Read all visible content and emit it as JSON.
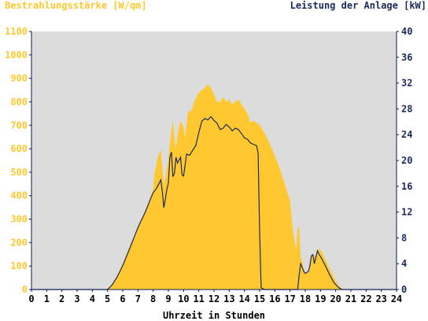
{
  "chart_data": {
    "type": "area",
    "left_axis_title": "Bestrahlungsstärke [W/qm]",
    "right_axis_title": "Leistung der Anlage [kW]",
    "xlabel": "Uhrzeit in Stunden",
    "xlim": [
      0,
      24
    ],
    "x_ticks": [
      "0",
      "1",
      "2",
      "3",
      "4",
      "5",
      "6",
      "7",
      "8",
      "9",
      "10",
      "11",
      "12",
      "13",
      "14",
      "15",
      "16",
      "17",
      "18",
      "19",
      "20",
      "21",
      "22",
      "23",
      "24"
    ],
    "ylim_left": [
      0,
      1100
    ],
    "y_ticks_left": [
      "0",
      "100",
      "200",
      "300",
      "400",
      "500",
      "600",
      "700",
      "800",
      "900",
      "1000",
      "1100"
    ],
    "ylim_right": [
      0,
      40
    ],
    "y_ticks_right": [
      "0",
      "4",
      "8",
      "12",
      "16",
      "20",
      "24",
      "28",
      "32",
      "36",
      "40"
    ],
    "grid": false,
    "colors": {
      "plot_background": "#dcdcdc",
      "irradiance_fill": "#ffc830",
      "power_line": "#1a2a5a",
      "left_axis_text": "#ffc830",
      "right_axis_text": "#1a2a5a",
      "axis_line": "#0a1a50"
    },
    "series": [
      {
        "axis": "left",
        "style": "area",
        "points": [
          [
            0,
            0
          ],
          [
            5.0,
            0
          ],
          [
            5.3,
            25
          ],
          [
            5.6,
            55
          ],
          [
            6.0,
            110
          ],
          [
            6.5,
            190
          ],
          [
            7.0,
            270
          ],
          [
            7.5,
            340
          ],
          [
            7.8,
            390
          ],
          [
            8.0,
            430
          ],
          [
            8.1,
            500
          ],
          [
            8.3,
            560
          ],
          [
            8.5,
            600
          ],
          [
            8.6,
            520
          ],
          [
            8.7,
            450
          ],
          [
            8.8,
            470
          ],
          [
            9.0,
            560
          ],
          [
            9.2,
            680
          ],
          [
            9.3,
            720
          ],
          [
            9.4,
            640
          ],
          [
            9.5,
            600
          ],
          [
            9.6,
            660
          ],
          [
            9.8,
            720
          ],
          [
            10.0,
            690
          ],
          [
            10.1,
            650
          ],
          [
            10.3,
            760
          ],
          [
            10.5,
            760
          ],
          [
            10.7,
            800
          ],
          [
            11.0,
            840
          ],
          [
            11.2,
            850
          ],
          [
            11.4,
            860
          ],
          [
            11.6,
            875
          ],
          [
            11.8,
            860
          ],
          [
            12.0,
            830
          ],
          [
            12.2,
            800
          ],
          [
            12.4,
            800
          ],
          [
            12.6,
            820
          ],
          [
            12.8,
            800
          ],
          [
            13.0,
            810
          ],
          [
            13.2,
            790
          ],
          [
            13.4,
            800
          ],
          [
            13.6,
            810
          ],
          [
            13.8,
            790
          ],
          [
            14.0,
            770
          ],
          [
            14.2,
            750
          ],
          [
            14.4,
            710
          ],
          [
            14.6,
            720
          ],
          [
            14.8,
            710
          ],
          [
            15.0,
            700
          ],
          [
            15.3,
            670
          ],
          [
            15.6,
            630
          ],
          [
            16.0,
            570
          ],
          [
            16.3,
            520
          ],
          [
            16.6,
            460
          ],
          [
            17.0,
            380
          ],
          [
            17.2,
            240
          ],
          [
            17.4,
            170
          ],
          [
            17.5,
            270
          ],
          [
            17.6,
            260
          ],
          [
            17.7,
            140
          ],
          [
            17.9,
            90
          ],
          [
            18.0,
            70
          ],
          [
            18.2,
            80
          ],
          [
            18.3,
            110
          ],
          [
            18.5,
            150
          ],
          [
            18.7,
            140
          ],
          [
            18.9,
            175
          ],
          [
            19.1,
            160
          ],
          [
            19.3,
            130
          ],
          [
            19.6,
            90
          ],
          [
            19.9,
            50
          ],
          [
            20.2,
            15
          ],
          [
            20.5,
            0
          ],
          [
            24,
            0
          ]
        ]
      },
      {
        "axis": "right",
        "style": "line",
        "points": [
          [
            0,
            0
          ],
          [
            5.0,
            0
          ],
          [
            5.3,
            0.7
          ],
          [
            5.6,
            1.8
          ],
          [
            6.0,
            3.7
          ],
          [
            6.5,
            6.6
          ],
          [
            7.0,
            9.6
          ],
          [
            7.5,
            12.1
          ],
          [
            7.8,
            13.9
          ],
          [
            8.0,
            15.0
          ],
          [
            8.2,
            15.6
          ],
          [
            8.4,
            16.5
          ],
          [
            8.5,
            17.0
          ],
          [
            8.6,
            15.2
          ],
          [
            8.7,
            12.7
          ],
          [
            8.8,
            14.0
          ],
          [
            8.9,
            15.5
          ],
          [
            9.0,
            16.5
          ],
          [
            9.1,
            20.5
          ],
          [
            9.2,
            21.3
          ],
          [
            9.3,
            17.5
          ],
          [
            9.4,
            18.0
          ],
          [
            9.5,
            20.5
          ],
          [
            9.6,
            19.6
          ],
          [
            9.8,
            20.5
          ],
          [
            9.9,
            17.8
          ],
          [
            10.0,
            17.6
          ],
          [
            10.2,
            21.0
          ],
          [
            10.4,
            20.8
          ],
          [
            10.6,
            21.6
          ],
          [
            10.8,
            22.3
          ],
          [
            11.0,
            24.3
          ],
          [
            11.2,
            26.1
          ],
          [
            11.4,
            26.5
          ],
          [
            11.6,
            26.3
          ],
          [
            11.8,
            26.8
          ],
          [
            12.0,
            26.2
          ],
          [
            12.2,
            25.8
          ],
          [
            12.4,
            24.8
          ],
          [
            12.6,
            25.0
          ],
          [
            12.8,
            25.6
          ],
          [
            13.0,
            25.2
          ],
          [
            13.2,
            24.6
          ],
          [
            13.4,
            25.0
          ],
          [
            13.6,
            24.8
          ],
          [
            13.8,
            24.2
          ],
          [
            14.0,
            23.5
          ],
          [
            14.2,
            23.3
          ],
          [
            14.4,
            22.7
          ],
          [
            14.6,
            22.5
          ],
          [
            14.8,
            22.3
          ],
          [
            14.9,
            21.2
          ],
          [
            15.0,
            9.0
          ],
          [
            15.1,
            0.3
          ],
          [
            15.3,
            0
          ],
          [
            17.0,
            0
          ],
          [
            17.5,
            0
          ],
          [
            17.6,
            2.3
          ],
          [
            17.7,
            4.0
          ],
          [
            17.9,
            2.8
          ],
          [
            18.0,
            2.5
          ],
          [
            18.2,
            2.8
          ],
          [
            18.3,
            3.6
          ],
          [
            18.4,
            5.2
          ],
          [
            18.5,
            5.4
          ],
          [
            18.6,
            4.0
          ],
          [
            18.7,
            5.0
          ],
          [
            18.8,
            6.0
          ],
          [
            18.9,
            5.5
          ],
          [
            19.1,
            4.7
          ],
          [
            19.3,
            3.8
          ],
          [
            19.6,
            2.3
          ],
          [
            19.9,
            1.0
          ],
          [
            20.2,
            0.3
          ],
          [
            20.4,
            0
          ],
          [
            24,
            0
          ]
        ]
      }
    ]
  }
}
